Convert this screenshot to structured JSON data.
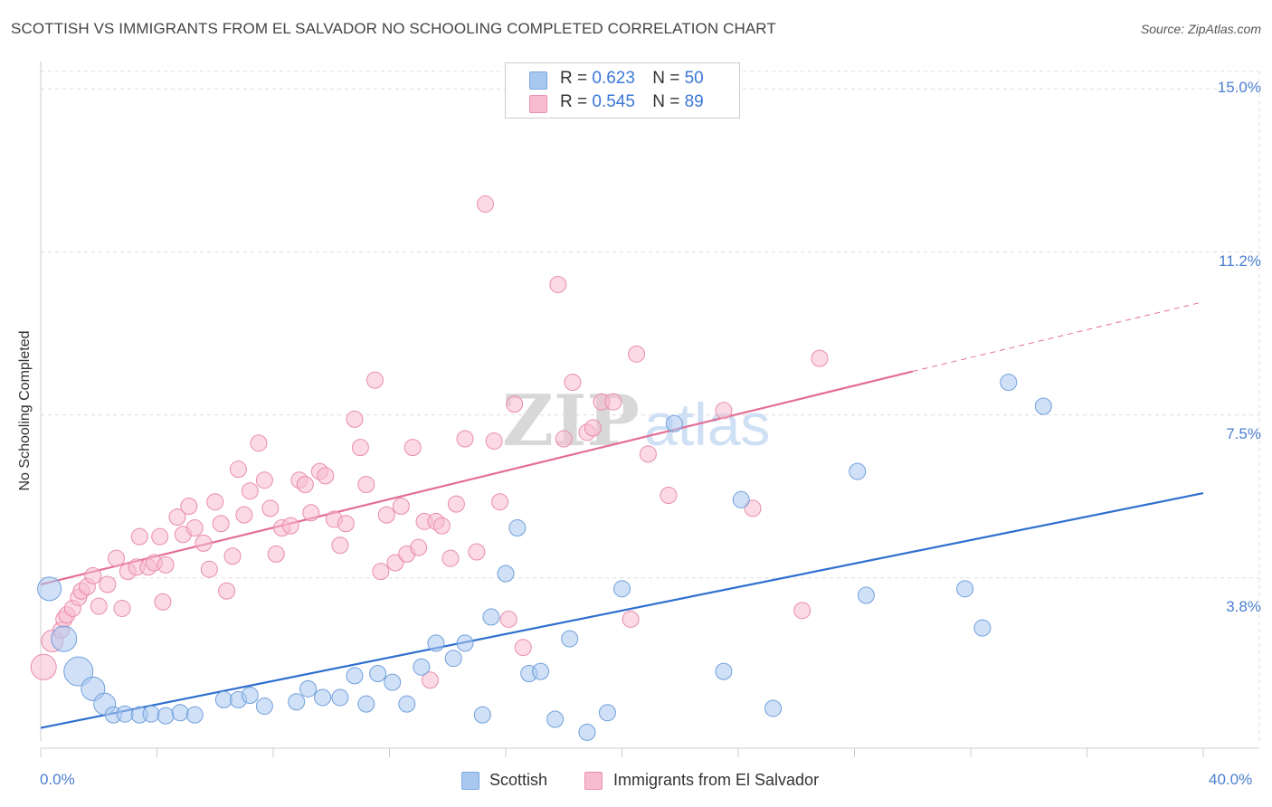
{
  "header": {
    "title": "SCOTTISH VS IMMIGRANTS FROM EL SALVADOR NO SCHOOLING COMPLETED CORRELATION CHART",
    "source": "Source: ZipAtlas.com"
  },
  "watermark": "ZIPatlas",
  "legend": {
    "rows": [
      {
        "r_label": "R =",
        "r_value": "0.623",
        "n_label": "N =",
        "n_value": "50",
        "color": "#a9c8f0",
        "border": "#7aa7e0"
      },
      {
        "r_label": "R =",
        "r_value": "0.545",
        "n_label": "N =",
        "n_value": "89",
        "color": "#f7bcd0",
        "border": "#ec8fb0"
      }
    ]
  },
  "bottom_legend": {
    "scottish": "Scottish",
    "salvador": "Immigrants from El Salvador"
  },
  "axes": {
    "ylabel": "No Schooling Completed",
    "yticks": [
      "15.0%",
      "11.2%",
      "7.5%",
      "3.8%"
    ],
    "xticks": [
      "0.0%",
      "40.0%"
    ]
  },
  "colors": {
    "scottish_fill": "#a9c8f0",
    "scottish_stroke": "#6f9fdc",
    "scottish_line": "#2f6fcf",
    "salvador_fill": "#f7bcd0",
    "salvador_stroke": "#e98cac",
    "salvador_line": "#e46e96",
    "grid": "#dddddd",
    "tick_text": "#4a7fd0"
  },
  "chart_data": {
    "type": "scatter",
    "title": "SCOTTISH VS IMMIGRANTS FROM EL SALVADOR NO SCHOOLING COMPLETED CORRELATION CHART",
    "xlabel": "",
    "ylabel": "No Schooling Completed",
    "xlim": [
      0,
      40
    ],
    "ylim": [
      0,
      15.4
    ],
    "y_gridlines": [
      3.75,
      7.5,
      11.25,
      15.0
    ],
    "grid": true,
    "legend_position": "top-center",
    "series": [
      {
        "name": "Scottish",
        "R": 0.623,
        "N": 50,
        "trend": {
          "x": [
            0,
            40
          ],
          "y": [
            0.3,
            5.7
          ]
        },
        "points": [
          [
            0.3,
            3.5,
            13
          ],
          [
            0.8,
            2.35,
            14
          ],
          [
            1.3,
            1.6,
            16
          ],
          [
            1.8,
            1.2,
            13
          ],
          [
            2.2,
            0.85,
            12
          ],
          [
            2.5,
            0.6,
            9
          ],
          [
            2.9,
            0.62,
            9
          ],
          [
            3.4,
            0.6,
            9
          ],
          [
            3.8,
            0.62,
            9
          ],
          [
            4.3,
            0.58,
            9
          ],
          [
            4.8,
            0.65,
            9
          ],
          [
            5.3,
            0.6,
            9
          ],
          [
            6.3,
            0.95,
            9
          ],
          [
            6.8,
            0.95,
            9
          ],
          [
            7.2,
            1.05,
            9
          ],
          [
            7.7,
            0.8,
            9
          ],
          [
            8.8,
            0.9,
            9
          ],
          [
            9.2,
            1.2,
            9
          ],
          [
            9.7,
            1.0,
            9
          ],
          [
            10.3,
            1.0,
            9
          ],
          [
            10.8,
            1.5,
            9
          ],
          [
            11.2,
            0.85,
            9
          ],
          [
            11.6,
            1.55,
            9
          ],
          [
            12.1,
            1.35,
            9
          ],
          [
            12.6,
            0.85,
            9
          ],
          [
            13.1,
            1.7,
            9
          ],
          [
            13.6,
            2.25,
            9
          ],
          [
            14.2,
            1.9,
            9
          ],
          [
            14.6,
            2.25,
            9
          ],
          [
            15.2,
            0.6,
            9
          ],
          [
            15.5,
            2.85,
            9
          ],
          [
            16.0,
            3.85,
            9
          ],
          [
            16.4,
            4.9,
            9
          ],
          [
            16.8,
            1.55,
            9
          ],
          [
            17.2,
            1.6,
            9
          ],
          [
            17.7,
            0.5,
            9
          ],
          [
            18.2,
            2.35,
            9
          ],
          [
            18.8,
            0.2,
            9
          ],
          [
            19.5,
            0.65,
            9
          ],
          [
            20.0,
            3.5,
            9
          ],
          [
            21.8,
            7.3,
            9
          ],
          [
            23.5,
            1.6,
            9
          ],
          [
            24.1,
            5.55,
            9
          ],
          [
            25.2,
            0.75,
            9
          ],
          [
            28.1,
            6.2,
            9
          ],
          [
            28.4,
            3.35,
            9
          ],
          [
            31.8,
            3.5,
            9
          ],
          [
            32.4,
            2.6,
            9
          ],
          [
            33.3,
            8.25,
            9
          ],
          [
            34.5,
            7.7,
            9
          ]
        ]
      },
      {
        "name": "Immigrants from El Salvador",
        "R": 0.545,
        "N": 89,
        "trend": {
          "x": [
            0,
            30
          ],
          "y": [
            3.6,
            8.5
          ]
        },
        "trend_dashed": {
          "x": [
            30,
            40
          ],
          "y": [
            8.5,
            10.1
          ]
        },
        "points": [
          [
            0.1,
            1.7,
            14
          ],
          [
            0.4,
            2.3,
            12
          ],
          [
            0.7,
            2.55,
            9
          ],
          [
            0.8,
            2.8,
            9
          ],
          [
            0.9,
            2.9,
            9
          ],
          [
            1.1,
            3.05,
            9
          ],
          [
            1.3,
            3.3,
            9
          ],
          [
            1.4,
            3.45,
            9
          ],
          [
            1.6,
            3.55,
            9
          ],
          [
            1.8,
            3.8,
            9
          ],
          [
            2.0,
            3.1,
            9
          ],
          [
            2.3,
            3.6,
            9
          ],
          [
            2.6,
            4.2,
            9
          ],
          [
            2.8,
            3.05,
            9
          ],
          [
            3.0,
            3.9,
            9
          ],
          [
            3.3,
            4.0,
            9
          ],
          [
            3.4,
            4.7,
            9
          ],
          [
            3.7,
            4.0,
            9
          ],
          [
            3.9,
            4.1,
            9
          ],
          [
            4.1,
            4.7,
            9
          ],
          [
            4.2,
            3.2,
            9
          ],
          [
            4.3,
            4.05,
            9
          ],
          [
            4.7,
            5.15,
            9
          ],
          [
            4.9,
            4.75,
            9
          ],
          [
            5.1,
            5.4,
            9
          ],
          [
            5.3,
            4.9,
            9
          ],
          [
            5.6,
            4.55,
            9
          ],
          [
            5.8,
            3.95,
            9
          ],
          [
            6.0,
            5.5,
            9
          ],
          [
            6.2,
            5.0,
            9
          ],
          [
            6.4,
            3.45,
            9
          ],
          [
            6.6,
            4.25,
            9
          ],
          [
            6.8,
            6.25,
            9
          ],
          [
            7.0,
            5.2,
            9
          ],
          [
            7.2,
            5.75,
            9
          ],
          [
            7.5,
            6.85,
            9
          ],
          [
            7.7,
            6.0,
            9
          ],
          [
            7.9,
            5.35,
            9
          ],
          [
            8.1,
            4.3,
            9
          ],
          [
            8.3,
            4.9,
            9
          ],
          [
            8.6,
            4.95,
            9
          ],
          [
            8.9,
            6.0,
            9
          ],
          [
            9.1,
            5.9,
            9
          ],
          [
            9.3,
            5.25,
            9
          ],
          [
            9.6,
            6.2,
            9
          ],
          [
            9.8,
            6.1,
            9
          ],
          [
            10.1,
            5.1,
            9
          ],
          [
            10.3,
            4.5,
            9
          ],
          [
            10.5,
            5.0,
            9
          ],
          [
            10.8,
            7.4,
            9
          ],
          [
            11.0,
            6.75,
            9
          ],
          [
            11.2,
            5.9,
            9
          ],
          [
            11.5,
            8.3,
            9
          ],
          [
            11.7,
            3.9,
            9
          ],
          [
            11.9,
            5.2,
            9
          ],
          [
            12.2,
            4.1,
            9
          ],
          [
            12.4,
            5.4,
            9
          ],
          [
            12.6,
            4.3,
            9
          ],
          [
            12.8,
            6.75,
            9
          ],
          [
            13.0,
            4.45,
            9
          ],
          [
            13.2,
            5.05,
            9
          ],
          [
            13.4,
            1.4,
            9
          ],
          [
            13.6,
            5.05,
            9
          ],
          [
            13.8,
            4.95,
            9
          ],
          [
            14.1,
            4.2,
            9
          ],
          [
            14.3,
            5.45,
            9
          ],
          [
            14.6,
            6.95,
            9
          ],
          [
            15.0,
            4.35,
            9
          ],
          [
            15.3,
            12.35,
            9
          ],
          [
            15.6,
            6.9,
            9
          ],
          [
            15.8,
            5.5,
            9
          ],
          [
            16.1,
            2.8,
            9
          ],
          [
            16.3,
            7.75,
            9
          ],
          [
            16.6,
            2.15,
            9
          ],
          [
            17.8,
            10.5,
            9
          ],
          [
            18.3,
            8.25,
            9
          ],
          [
            18.8,
            7.1,
            9
          ],
          [
            19.3,
            7.8,
            9
          ],
          [
            19.7,
            7.8,
            9
          ],
          [
            20.3,
            2.8,
            9
          ],
          [
            20.5,
            8.9,
            9
          ],
          [
            20.9,
            6.6,
            9
          ],
          [
            21.6,
            5.65,
            9
          ],
          [
            23.5,
            7.6,
            9
          ],
          [
            24.5,
            5.35,
            9
          ],
          [
            26.2,
            3.0,
            9
          ],
          [
            26.8,
            8.8,
            9
          ],
          [
            19.0,
            7.2,
            9
          ],
          [
            18.0,
            6.95,
            9
          ]
        ]
      }
    ]
  }
}
